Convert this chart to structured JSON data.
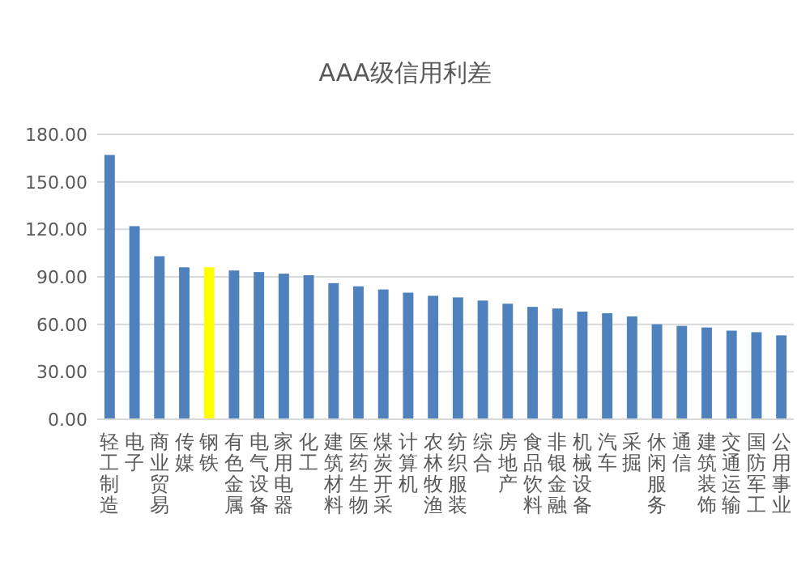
{
  "chart_data": {
    "type": "bar",
    "title": "AAA级信用利差",
    "categories": [
      "轻工制造",
      "电子",
      "商业贸易",
      "传媒",
      "钢铁",
      "有色金属",
      "电气设备",
      "家用电器",
      "化工",
      "建筑材料",
      "医药生物",
      "煤炭开采",
      "计算机",
      "农林牧渔",
      "纺织服装",
      "综合",
      "房地产",
      "食品饮料",
      "非银金融",
      "机械设备",
      "汽车",
      "采掘",
      "休闲服务",
      "通信",
      "建筑装饰",
      "交通运输",
      "国防军工",
      "公用事业"
    ],
    "values": [
      167,
      122,
      103,
      96,
      96,
      94,
      93,
      92,
      91,
      86,
      84,
      82,
      80,
      78,
      77,
      75,
      73,
      71,
      70,
      68,
      67,
      65,
      60,
      59,
      58,
      56,
      55,
      53
    ],
    "colors": [
      "#4f81bd",
      "#4f81bd",
      "#4f81bd",
      "#4f81bd",
      "#ffff00",
      "#4f81bd",
      "#4f81bd",
      "#4f81bd",
      "#4f81bd",
      "#4f81bd",
      "#4f81bd",
      "#4f81bd",
      "#4f81bd",
      "#4f81bd",
      "#4f81bd",
      "#4f81bd",
      "#4f81bd",
      "#4f81bd",
      "#4f81bd",
      "#4f81bd",
      "#4f81bd",
      "#4f81bd",
      "#4f81bd",
      "#4f81bd",
      "#4f81bd",
      "#4f81bd",
      "#4f81bd",
      "#4f81bd"
    ],
    "ylim": [
      0,
      180
    ],
    "yticks": [
      {
        "value": 0,
        "label": "0.00"
      },
      {
        "value": 30,
        "label": "30.00"
      },
      {
        "value": 60,
        "label": "60.00"
      },
      {
        "value": 90,
        "label": "90.00"
      },
      {
        "value": 120,
        "label": "120.00"
      },
      {
        "value": 150,
        "label": "150.00"
      },
      {
        "value": 180,
        "label": "180.00"
      }
    ],
    "grid": "y"
  }
}
